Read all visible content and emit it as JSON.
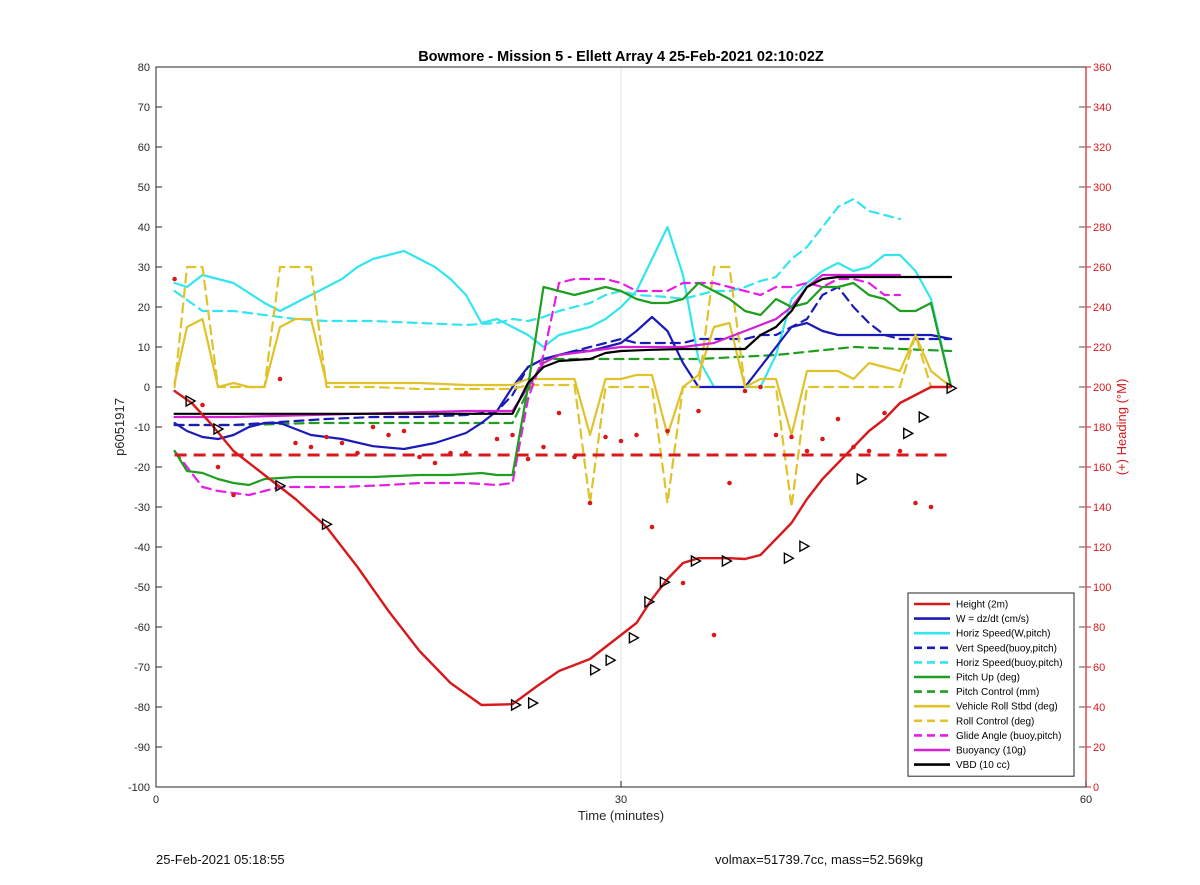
{
  "footer": {
    "left": "25-Feb-2021 05:18:55",
    "right": "volmax=51739.7cc, mass=52.569kg"
  },
  "chart_data": {
    "type": "line",
    "title": "Bowmore - Mission 5 - Ellett Array 4 25-Feb-2021 02:10:02Z",
    "xlabel": "Time (minutes)",
    "ylabel": "p6051917",
    "y2label": "(+) Heading (°M)",
    "xlim": [
      0,
      60
    ],
    "ylim": [
      -100,
      80
    ],
    "y2lim": [
      0,
      360
    ],
    "xticks": [
      0,
      30,
      60
    ],
    "yticks": [
      -100,
      -90,
      -80,
      -70,
      -60,
      -50,
      -40,
      -30,
      -20,
      -10,
      0,
      10,
      20,
      30,
      40,
      50,
      60,
      70,
      80
    ],
    "y2ticks": [
      0,
      20,
      40,
      60,
      80,
      100,
      120,
      140,
      160,
      180,
      200,
      220,
      240,
      260,
      280,
      300,
      320,
      340,
      360
    ],
    "grid": "x-only",
    "legend_position": "bottom-right",
    "colors": {
      "height": "#d7191c",
      "w": "#1a1ab8",
      "horiz": "#33e5ee",
      "pitch": "#1f9e1f",
      "roll": "#e0c22a",
      "glide": "#e61ee6",
      "buoy": "#d51fd5",
      "vbd": "#000000",
      "right_axis": "#d7191c"
    },
    "series": [
      {
        "name": "Height (2m)",
        "color": "#d7191c",
        "dash": false,
        "width": 2.4,
        "x": [
          1.2,
          2.3,
          3.5,
          5,
          7,
          9,
          11,
          13,
          15,
          17,
          19,
          21,
          23,
          24.5,
          26,
          28,
          29,
          30,
          31,
          32,
          33,
          34,
          35,
          36,
          37,
          38,
          39,
          40,
          41,
          42,
          43,
          44,
          45,
          46,
          47,
          48,
          49,
          50,
          51.3
        ],
        "y": [
          -1,
          -4,
          -9,
          -16,
          -22,
          -28,
          -35,
          -45,
          -56,
          -66,
          -74,
          -79.5,
          -79.3,
          -75,
          -71,
          -68,
          -65,
          -62,
          -59,
          -53,
          -48,
          -44,
          -42.8,
          -42.8,
          -42.8,
          -43,
          -42,
          -38,
          -34,
          -28,
          -23,
          -19,
          -15,
          -11,
          -8,
          -4,
          -2,
          0,
          0
        ]
      },
      {
        "name": "W = dz/dt (cm/s)",
        "color": "#1a1ab8",
        "dash": false,
        "width": 2.2,
        "x": [
          1.2,
          2,
          3,
          4,
          5,
          6,
          7,
          8,
          9,
          10,
          12,
          14,
          16,
          18,
          20,
          21,
          22,
          23,
          24,
          25,
          26,
          27,
          28,
          29,
          30,
          31,
          32,
          33,
          34,
          35,
          36,
          37,
          38,
          39,
          40,
          41,
          42,
          43,
          44,
          45,
          46,
          47,
          48,
          49,
          50,
          51.3
        ],
        "y": [
          -9,
          -11,
          -12.5,
          -13,
          -12,
          -10,
          -9,
          -9,
          -10.5,
          -12,
          -13,
          -14.8,
          -15.5,
          -14,
          -11.5,
          -9,
          -6,
          0,
          5,
          7,
          8,
          9,
          9,
          10,
          11,
          14,
          17.5,
          14,
          6,
          0,
          0,
          0,
          0,
          5,
          10,
          15,
          16,
          14,
          13,
          13,
          13,
          13,
          13,
          13,
          13,
          12
        ]
      },
      {
        "name": "Horiz Speed(W,pitch)",
        "color": "#33e5ee",
        "dash": false,
        "width": 2.2,
        "x": [
          1.2,
          2,
          3,
          5,
          7,
          8,
          9,
          10,
          11,
          12,
          13,
          14,
          15,
          16,
          17,
          18,
          19,
          20,
          21,
          22,
          23,
          24,
          25,
          26,
          27,
          28,
          29,
          30,
          31,
          32,
          33,
          34,
          35,
          36,
          37,
          38,
          39,
          40,
          41,
          42,
          43,
          44,
          45,
          46,
          47,
          48,
          49,
          50,
          51.3
        ],
        "y": [
          26,
          25,
          28,
          26,
          21,
          19,
          21,
          23,
          25,
          27,
          30,
          32,
          33,
          34,
          32,
          30,
          27,
          23,
          16,
          17,
          15,
          13,
          10,
          13,
          14,
          15,
          17,
          20,
          24,
          32,
          40,
          28,
          7,
          0,
          0,
          0,
          0,
          8,
          22,
          26,
          29,
          31,
          29,
          30,
          33,
          33,
          29,
          22,
          0
        ]
      },
      {
        "name": "Vert Speed(buoy,pitch)",
        "color": "#1a1ab8",
        "dash": true,
        "width": 2.2,
        "x": [
          1.2,
          3,
          5,
          7,
          9,
          11,
          14,
          17,
          20,
          22,
          23,
          24,
          25,
          26,
          27,
          28,
          29,
          30,
          31,
          32,
          33,
          34,
          35,
          36,
          37,
          38,
          39,
          40,
          41,
          42,
          43,
          44,
          45,
          46,
          47,
          48,
          49,
          50,
          51.3
        ],
        "y": [
          -9.5,
          -9.5,
          -9.5,
          -9,
          -8.5,
          -8,
          -7.5,
          -7.5,
          -7,
          -6,
          -2,
          5,
          7,
          8,
          9,
          10,
          11,
          12,
          11,
          11,
          11,
          11,
          12,
          12,
          12,
          12,
          13,
          13,
          15,
          17,
          23,
          25,
          20,
          16,
          13,
          12,
          12,
          12,
          12
        ]
      },
      {
        "name": "Horiz Speed(buoy,pitch)",
        "color": "#33e5ee",
        "dash": true,
        "width": 2.2,
        "x": [
          1.2,
          3,
          5,
          7,
          8,
          9,
          11,
          14,
          17,
          20,
          22,
          23,
          24,
          25,
          26,
          28,
          29,
          30,
          31,
          33,
          34,
          35,
          36,
          37,
          38,
          39,
          40,
          41,
          42,
          43,
          44,
          45,
          46,
          47,
          48
        ],
        "y": [
          24,
          19,
          19,
          18,
          17.5,
          17,
          16.5,
          16.5,
          16,
          15.5,
          16,
          17,
          16.5,
          17.5,
          19,
          21,
          23,
          24,
          23,
          22.5,
          22,
          23,
          24,
          24,
          25,
          26.5,
          27.5,
          32,
          35,
          40,
          45,
          47,
          44,
          43,
          42
        ]
      },
      {
        "name": "Pitch Up (deg)",
        "color": "#1f9e1f",
        "dash": false,
        "width": 2.2,
        "x": [
          1.2,
          2,
          3,
          4,
          5,
          6,
          7,
          9,
          11,
          14,
          17,
          19,
          21,
          22,
          23,
          24,
          25,
          26,
          27,
          28,
          29,
          30,
          31,
          32,
          33,
          34,
          35,
          36,
          37,
          38,
          39,
          40,
          41,
          42,
          43,
          44,
          45,
          46,
          47,
          48,
          49,
          50,
          51.3
        ],
        "y": [
          -16,
          -21,
          -21.5,
          -23,
          -24,
          -24.5,
          -23,
          -22.5,
          -22.5,
          -22.5,
          -22,
          -22,
          -21.5,
          -22,
          -22,
          0,
          25,
          24,
          23,
          24,
          25,
          24,
          22,
          21,
          21,
          22,
          26,
          24,
          22,
          19,
          18,
          22,
          20,
          21,
          25,
          25,
          26,
          23,
          22,
          19,
          19,
          21,
          0
        ]
      },
      {
        "name": "Pitch Control (mm)",
        "color": "#1f9e1f",
        "dash": true,
        "width": 2.2,
        "x": [
          1.2,
          3,
          6,
          10,
          15,
          20,
          23,
          25,
          30,
          35,
          40,
          45,
          51.3
        ],
        "y": [
          -9.5,
          -9.5,
          -9.5,
          -9,
          -9,
          -9,
          -9,
          7,
          7,
          7,
          8,
          10,
          9
        ]
      },
      {
        "name": "Vehicle Roll Stbd (deg)",
        "color": "#e0c22a",
        "dash": false,
        "width": 2.2,
        "x": [
          1.2,
          2,
          3,
          4,
          5,
          6,
          7,
          8,
          9,
          10,
          11,
          14,
          17,
          20,
          23,
          24,
          25,
          26,
          27,
          28,
          29,
          30,
          31,
          32,
          33,
          34,
          35,
          36,
          37,
          38,
          39,
          40,
          41,
          42,
          43,
          44,
          45,
          46,
          47,
          48,
          49,
          50,
          51.3
        ],
        "y": [
          1,
          15,
          17,
          0,
          1,
          0,
          0,
          15,
          17,
          17,
          1,
          1,
          1,
          0.5,
          0.5,
          2,
          2,
          2,
          2,
          -12,
          2,
          2,
          3,
          3,
          -12,
          0,
          3,
          15,
          16,
          0,
          2,
          2,
          -12,
          4,
          4,
          4,
          2,
          6,
          5,
          4,
          13,
          4,
          0
        ]
      },
      {
        "name": "Roll Control (deg)",
        "color": "#e0c22a",
        "dash": true,
        "width": 2.2,
        "x": [
          1.2,
          2,
          3,
          4,
          5,
          6,
          7,
          8,
          9,
          10,
          11,
          14,
          17,
          20,
          23,
          24,
          25,
          26,
          27,
          28,
          29,
          30,
          31,
          32,
          33,
          34,
          35,
          36,
          37,
          38,
          39,
          40,
          41,
          42,
          43,
          44,
          45,
          46,
          47,
          48,
          49,
          50,
          51.3
        ],
        "y": [
          0,
          30,
          30,
          0,
          0,
          0,
          0,
          30,
          30,
          30,
          0,
          0,
          -0.5,
          -0.5,
          -0.5,
          0.5,
          0.5,
          0.5,
          0.5,
          -29,
          0,
          0,
          0,
          0,
          -29,
          0,
          0,
          30,
          30,
          0,
          0,
          0,
          -30,
          0,
          0,
          0,
          0,
          0,
          0,
          0,
          13,
          0,
          0
        ]
      },
      {
        "name": "Glide Angle (buoy,pitch)",
        "color": "#e61ee6",
        "dash": true,
        "width": 2.2,
        "x": [
          1.2,
          3,
          4,
          5,
          6,
          7,
          8,
          10,
          12,
          15,
          17,
          20,
          22,
          23,
          24,
          25,
          26,
          27,
          28,
          29,
          30,
          31,
          32,
          33,
          34,
          35,
          36,
          37,
          38,
          39,
          40,
          41,
          42,
          43,
          44,
          45,
          46,
          47,
          48
        ],
        "y": [
          -16,
          -25,
          -26,
          -26.5,
          -27,
          -26,
          -25,
          -25,
          -25,
          -24.5,
          -24,
          -24,
          -24.5,
          -24,
          -3,
          8,
          26,
          27,
          27,
          27,
          26,
          24,
          24,
          24,
          26,
          26,
          26,
          25,
          24,
          23,
          25,
          25,
          26,
          25,
          27,
          27,
          26,
          23,
          23
        ]
      },
      {
        "name": "Buoyancy (10g)",
        "color": "#d51fd5",
        "dash": false,
        "width": 2.2,
        "x": [
          1.2,
          5,
          10,
          15,
          20,
          22,
          23,
          24,
          25,
          26,
          28,
          30,
          32,
          34,
          36,
          38,
          40,
          41,
          42,
          43,
          44,
          46,
          48
        ],
        "y": [
          -7.5,
          -7.5,
          -7,
          -6.5,
          -6,
          -6,
          -6,
          0,
          6,
          8,
          9,
          10,
          10,
          10,
          11,
          14,
          17,
          20,
          25,
          28,
          28,
          28,
          28
        ]
      },
      {
        "name": "VBD (10 cc)",
        "color": "#000000",
        "dash": false,
        "width": 2.2,
        "x": [
          1.2,
          5,
          10,
          15,
          20,
          22,
          23,
          24,
          25,
          26,
          28,
          29,
          30,
          32,
          34,
          36,
          38,
          39,
          40,
          41,
          42,
          43,
          44,
          46,
          48,
          51.3
        ],
        "y": [
          -6.7,
          -6.7,
          -6.7,
          -6.7,
          -6.7,
          -6.7,
          -6.7,
          1,
          5,
          6.5,
          7,
          8.5,
          9,
          9.3,
          9.5,
          9.5,
          9.5,
          13,
          15,
          19,
          25,
          27,
          27.5,
          27.5,
          27.5,
          27.5
        ]
      }
    ],
    "heading_reference": {
      "axis": "right",
      "y": 166,
      "x": [
        1.2,
        51.3
      ],
      "color": "#d7191c",
      "dash": true
    },
    "heading_points": {
      "axis": "right",
      "color": "#d7191c",
      "x": [
        1.2,
        3,
        4,
        5,
        8,
        9,
        10,
        11,
        12,
        13,
        14,
        15,
        16,
        17,
        18,
        19,
        20,
        22,
        23,
        24,
        25,
        26,
        27,
        28,
        29,
        30,
        31,
        32,
        33,
        34,
        35,
        36,
        37,
        38,
        39,
        40,
        41,
        42,
        43,
        44,
        45,
        46,
        47,
        48,
        49,
        50
      ],
      "y": [
        254,
        191,
        160,
        146,
        204,
        172,
        170,
        175,
        172,
        167,
        180,
        176,
        178,
        165,
        162,
        167,
        167,
        174,
        176,
        164,
        170,
        187,
        165,
        142,
        175,
        173,
        176,
        130,
        178,
        102,
        188,
        76,
        152,
        198,
        200,
        176,
        175,
        168,
        174,
        184,
        170,
        168,
        187,
        168,
        142,
        140
      ]
    },
    "triangle_markers": {
      "series": "Height (2m)",
      "x": [
        2.2,
        4,
        8,
        11,
        23.2,
        24.3,
        28.3,
        29.3,
        30.8,
        31.8,
        32.8,
        34.8,
        36.8,
        40.8,
        41.8,
        45.5,
        48.5,
        49.5,
        51.3
      ],
      "y": [
        -3.5,
        -10.5,
        -24.7,
        -34.3,
        -79.5,
        -79,
        -70.7,
        -68.3,
        -62.7,
        -53.7,
        -48.8,
        -43.5,
        -43.5,
        -42.8,
        -39.8,
        -23,
        -11.6,
        -7.5,
        -0.3
      ]
    }
  }
}
